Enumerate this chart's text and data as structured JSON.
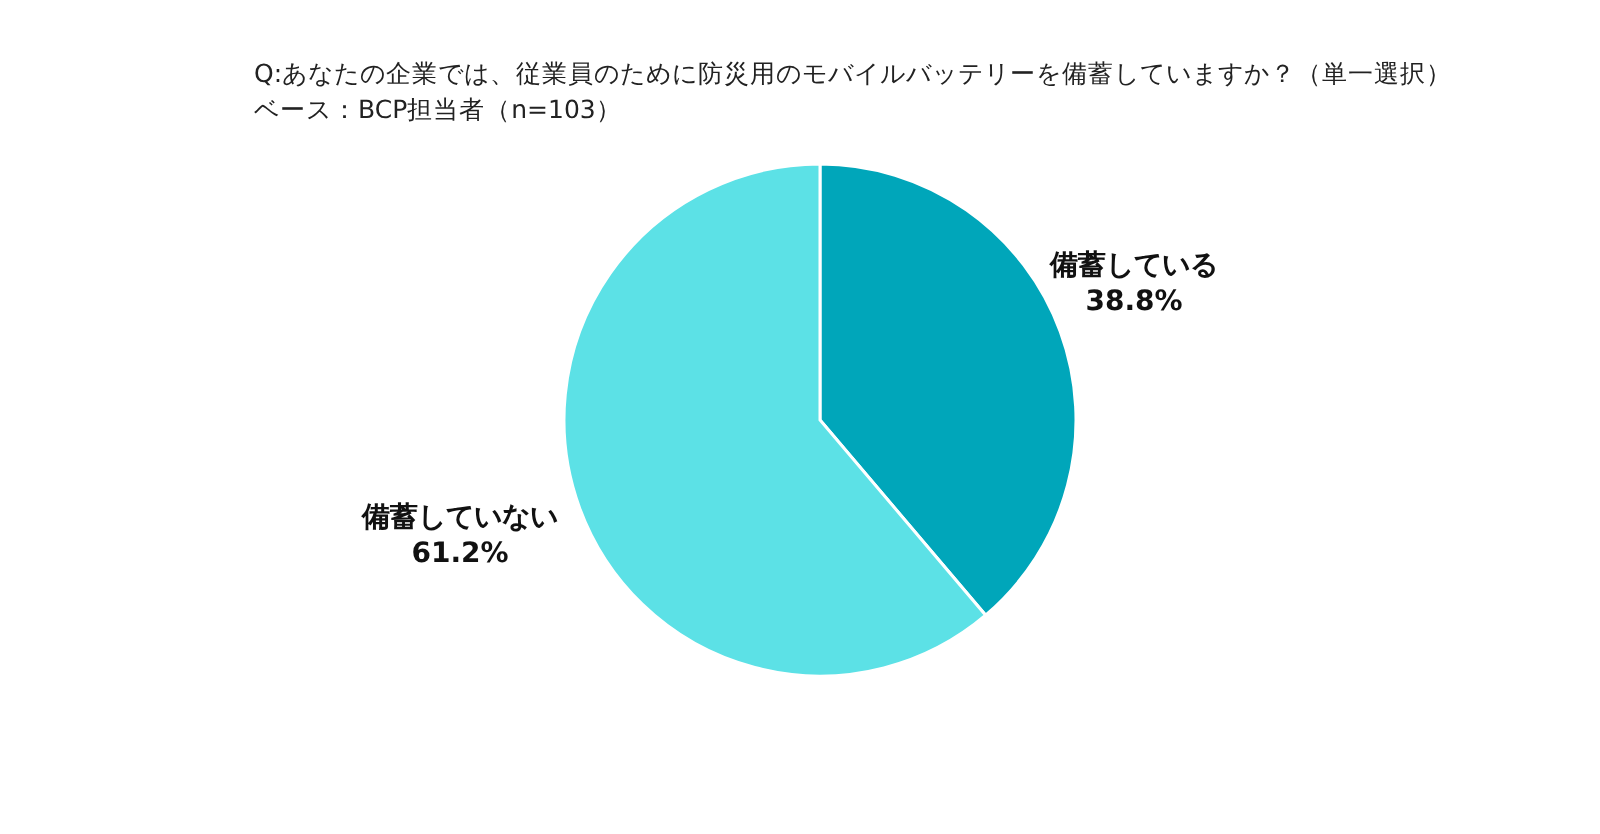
{
  "chart_data": {
    "type": "pie",
    "title": "Q:あなたの企業では、従業員のために防災用のモバイルバッテリーを備蓄していますか？（単一選択）",
    "subtitle": "ベース：BCP担当者（n=103）",
    "categories": [
      "備蓄している",
      "備蓄していない"
    ],
    "values": [
      38.8,
      61.2
    ],
    "value_labels": [
      "38.8%",
      "61.2%"
    ],
    "colors": [
      "#00a6ba",
      "#5ce1e6"
    ],
    "legend": false
  }
}
